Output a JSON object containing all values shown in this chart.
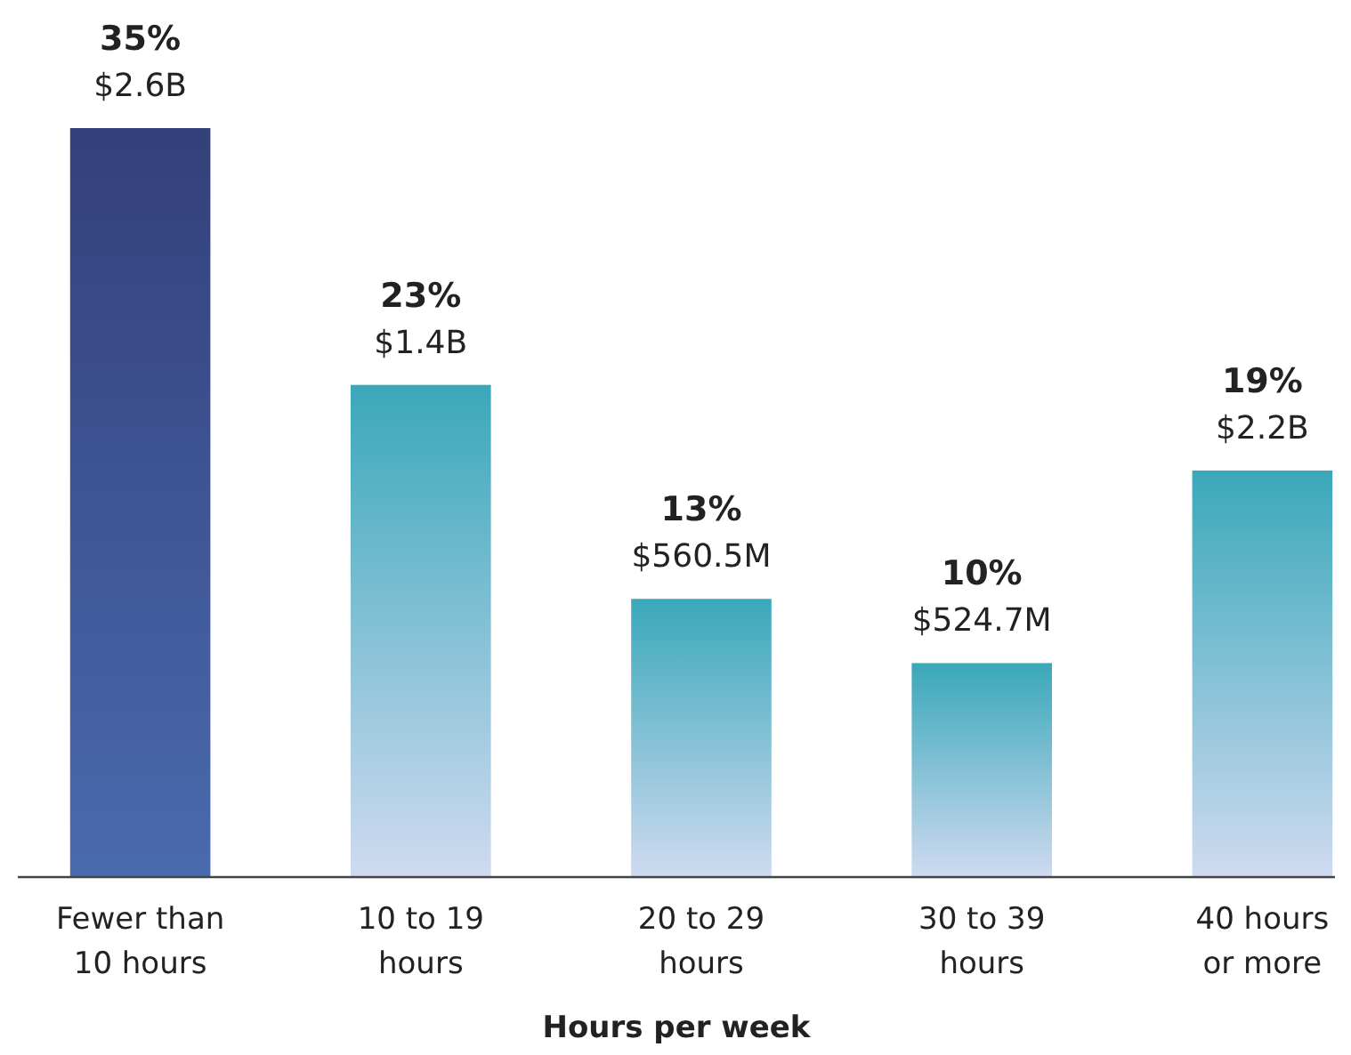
{
  "chart_data": {
    "type": "bar",
    "xlabel": "Hours per week",
    "categories": [
      "Fewer than 10 hours",
      "10  to 19 hours",
      "20  to 29 hours",
      "30  to 39 hours",
      "40 hours or more"
    ],
    "values": [
      35,
      23,
      13,
      10,
      19
    ],
    "colors": [
      "#33407a",
      "#3aa8ba",
      "#3aa8ba",
      "#3aa8ba",
      "#3aa8ba"
    ],
    "value_labels": [
      "35%",
      "23%",
      "13%",
      "10%",
      "19%"
    ],
    "annotations": [
      {
        "text": "$2.6B",
        "x": "Fewer than 10 hours",
        "y": 35
      },
      {
        "text": "$1.4B",
        "x": "10  to 19 hours",
        "y": 23
      },
      {
        "text": "$560.5M",
        "x": "20  to 29 hours",
        "y": 13
      },
      {
        "text": "$524.7M",
        "x": "30  to 39 hours",
        "y": 10
      },
      {
        "text": "$2.2B",
        "x": "40 hours or more",
        "y": 19
      }
    ]
  }
}
